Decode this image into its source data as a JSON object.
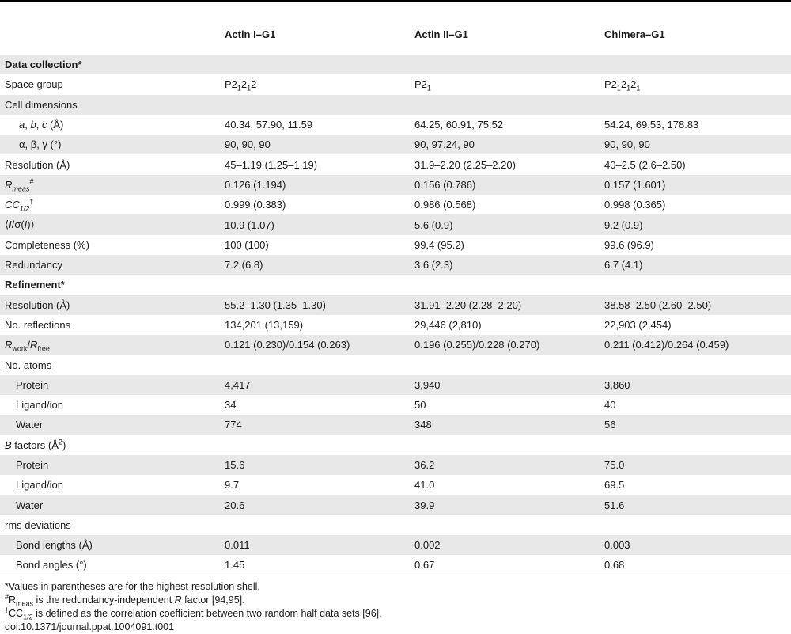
{
  "table": {
    "columns": [
      "",
      "Actin I–G1",
      "Actin II–G1",
      "Chimera–G1"
    ]
  },
  "rows": {
    "data_collection": {
      "label": "Data collection*"
    },
    "space_group": {
      "label": "Space group",
      "v1_main": "P2",
      "v1_s1": "1",
      "v1_mid": "2",
      "v1_s2": "1",
      "v1_end": "2",
      "v2_main": "P2",
      "v2_s1": "1",
      "v3_main": "P2",
      "v3_s1": "1",
      "v3_mid": "2",
      "v3_s2": "1",
      "v3_mid2": "2",
      "v3_s3": "1"
    },
    "cell_dimensions": {
      "label": "Cell dimensions"
    },
    "abc": {
      "label_a": "a",
      "label_sep1": ", ",
      "label_b": "b",
      "label_sep2": ", ",
      "label_c": "c",
      "label_unit": " (Å)",
      "v1": "40.34, 57.90, 11.59",
      "v2": "64.25, 60.91, 75.52",
      "v3": "54.24, 69.53, 178.83"
    },
    "angles": {
      "label": "α, β, γ (°)",
      "v1": "90, 90, 90",
      "v2": "90, 97.24, 90",
      "v3": "90, 90, 90"
    },
    "resolution": {
      "label": "Resolution (Å)",
      "v1": "45–1.19 (1.25–1.19)",
      "v2": "31.9–2.20 (2.25–2.20)",
      "v3": "40–2.5 (2.6–2.50)"
    },
    "rmeas": {
      "label_main": "R",
      "label_sub": "meas",
      "label_sup": "#",
      "v1": "0.126 (1.194)",
      "v2": "0.156 (0.786)",
      "v3": "0.157 (1.601)"
    },
    "cc12": {
      "label_main": "CC",
      "label_sub": "1/2",
      "label_sup": "†",
      "v1": "0.999 (0.383)",
      "v2": "0.986 (0.568)",
      "v3": "0.998 (0.365)"
    },
    "isigma": {
      "label_open": "⟨",
      "label_i": "I",
      "label_mid": "/σ(",
      "label_i2": "I",
      "label_close": ")⟩",
      "v1": "10.9 (1.07)",
      "v2": "5.6 (0.9)",
      "v3": "9.2 (0.9)"
    },
    "completeness": {
      "label": "Completeness (%)",
      "v1": "100 (100)",
      "v2": "99.4 (95.2)",
      "v3": "99.6 (96.9)"
    },
    "redundancy": {
      "label": "Redundancy",
      "v1": "7.2 (6.8)",
      "v2": "3.6 (2.3)",
      "v3": "6.7 (4.1)"
    },
    "refinement": {
      "label": "Refinement*"
    },
    "resolution2": {
      "label": "Resolution (Å)",
      "v1": "55.2–1.30 (1.35–1.30)",
      "v2": "31.91–2.20 (2.28–2.20)",
      "v3": "38.58–2.50 (2.60–2.50)"
    },
    "reflections": {
      "label": "No. reflections",
      "v1": "134,201 (13,159)",
      "v2": "29,446 (2,810)",
      "v3": "22,903 (2,454)"
    },
    "rwork": {
      "label_r1": "R",
      "label_s1": "work",
      "label_slash": "/",
      "label_r2": "R",
      "label_s2": "free",
      "v1": "0.121 (0.230)/0.154 (0.263)",
      "v2": "0.196 (0.255)/0.228 (0.270)",
      "v3": "0.211 (0.412)/0.264 (0.459)"
    },
    "atoms": {
      "label": "No. atoms"
    },
    "protein": {
      "label": "Protein",
      "v1": "4,417",
      "v2": "3,940",
      "v3": "3,860"
    },
    "ligand": {
      "label": "Ligand/ion",
      "v1": "34",
      "v2": "50",
      "v3": "40"
    },
    "water": {
      "label": "Water",
      "v1": "774",
      "v2": "348",
      "v3": "56"
    },
    "bfactors": {
      "label_b": "B",
      "label_rest": " factors (Å",
      "label_sup": "2",
      "label_close": ")"
    },
    "b_protein": {
      "label": "Protein",
      "v1": "15.6",
      "v2": "36.2",
      "v3": "75.0"
    },
    "b_ligand": {
      "label": "Ligand/ion",
      "v1": "9.7",
      "v2": "41.0",
      "v3": "69.5"
    },
    "b_water": {
      "label": "Water",
      "v1": "20.6",
      "v2": "39.9",
      "v3": "51.6"
    },
    "rms": {
      "label": "rms deviations"
    },
    "bond_lengths": {
      "label": "Bond lengths (Å)",
      "v1": "0.011",
      "v2": "0.002",
      "v3": "0.003"
    },
    "bond_angles": {
      "label": "Bond angles (°)",
      "v1": "1.45",
      "v2": "0.67",
      "v3": "0.68"
    }
  },
  "notes": {
    "n1": "*Values in parentheses are for the highest-resolution shell.",
    "n2_sup": "#",
    "n2_r": "R",
    "n2_sub": "meas",
    "n2_text": " is the redundancy-independent ",
    "n2_italic": "R",
    "n2_end": " factor [94,95].",
    "n3_sup": "†",
    "n3_cc": "CC",
    "n3_sub": "1/2",
    "n3_text": " is defined as the correlation coefficient between two random half data sets [96].",
    "doi": "doi:10.1371/journal.ppat.1004091.t001"
  }
}
